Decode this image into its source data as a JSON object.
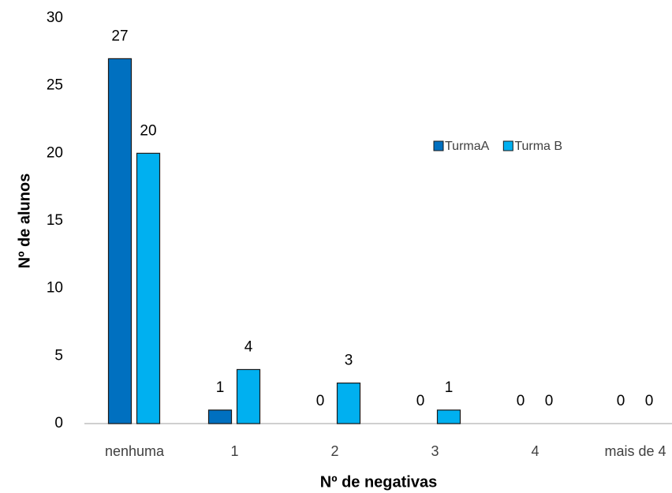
{
  "chart_data": {
    "type": "bar",
    "categories": [
      "nenhuma",
      "1",
      "2",
      "3",
      "4",
      "mais de 4"
    ],
    "series": [
      {
        "name": "TurmaA",
        "color": "#0070c0",
        "values": [
          27,
          1,
          0,
          0,
          0,
          0
        ]
      },
      {
        "name": "Turma B",
        "color": "#00b0f0",
        "values": [
          20,
          4,
          3,
          1,
          0,
          0
        ]
      }
    ],
    "ylim": [
      0,
      30
    ],
    "yticks": [
      0,
      5,
      10,
      15,
      20,
      25,
      30
    ],
    "xlabel": "Nº de negativas",
    "ylabel": "Nº de alunos",
    "grid": false,
    "legend": "right"
  }
}
